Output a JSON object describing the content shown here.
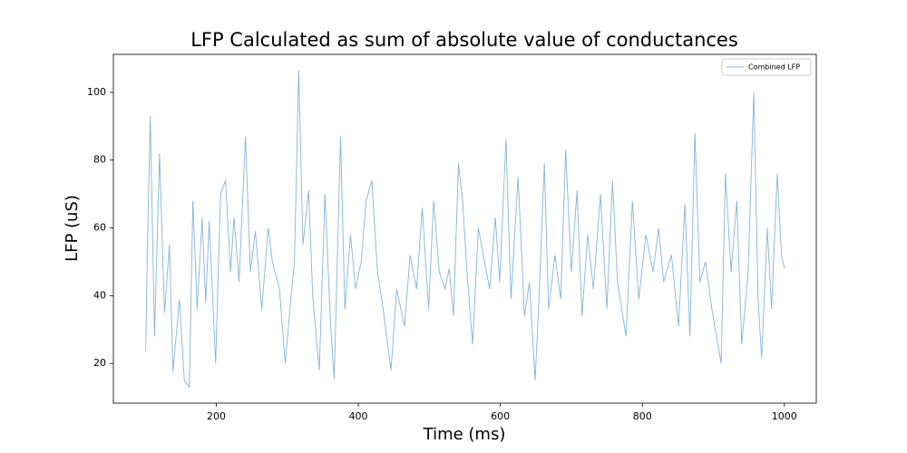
{
  "chart_data": {
    "type": "line",
    "title": "LFP Calculated as sum of absolute value of conductances",
    "xlabel": "Time (ms)",
    "ylabel": "LFP (uS)",
    "x": [
      100.5,
      103,
      107,
      113,
      120,
      127,
      134,
      139,
      148,
      155,
      162,
      167,
      173,
      180,
      185,
      190,
      199,
      206,
      213,
      220,
      225,
      232,
      241,
      248,
      255,
      264,
      273,
      279,
      289,
      297,
      305,
      310,
      316,
      322,
      330,
      336,
      345,
      353,
      361,
      366,
      375,
      381,
      389,
      396,
      404,
      411,
      419,
      427,
      435,
      446,
      454,
      465,
      473,
      482,
      490,
      499,
      506,
      514,
      522,
      528,
      534,
      541,
      547,
      553,
      561,
      569,
      576,
      585,
      593,
      599,
      608,
      615,
      625,
      634,
      641,
      649,
      655,
      662,
      668,
      677,
      685,
      692,
      700,
      708,
      715,
      723,
      731,
      741,
      750,
      758,
      765,
      777,
      786,
      795,
      805,
      815,
      823,
      830,
      841,
      851,
      860,
      867,
      874,
      881,
      889,
      898,
      911,
      917,
      925,
      933,
      940,
      949,
      957,
      963,
      968,
      976,
      982,
      990,
      996,
      1000
    ],
    "series": [
      {
        "name": "Combined LFP",
        "color": "#1f77b4",
        "values": [
          23.5,
          55,
          93,
          28,
          82,
          35,
          55,
          17.6,
          39,
          15,
          13,
          68,
          36,
          63,
          38,
          62,
          20,
          70,
          74,
          47,
          63,
          44,
          87,
          47,
          59,
          36,
          60,
          50,
          42,
          20,
          39,
          50,
          106.5,
          55,
          71,
          39,
          18,
          70,
          31,
          15.5,
          87,
          36,
          58,
          42,
          50,
          68,
          74,
          47,
          36,
          18,
          42,
          31,
          52,
          42,
          66,
          36,
          68,
          47,
          42,
          48,
          34,
          79,
          68,
          47,
          25.6,
          60,
          52,
          42,
          63,
          44,
          86,
          39,
          75,
          34,
          44,
          15,
          42,
          79,
          36,
          52,
          39,
          83,
          47,
          71,
          34,
          58,
          42,
          70,
          36,
          74,
          44,
          28,
          68,
          39,
          58,
          47,
          60,
          44,
          52,
          31,
          67,
          28,
          88,
          44,
          50,
          36,
          20,
          76,
          47,
          68,
          25.6,
          47,
          100,
          39,
          21.6,
          60,
          36,
          76,
          52,
          48
        ]
      }
    ],
    "xlim": [
      55,
      1045
    ],
    "ylim": [
      8.3,
      111.2
    ],
    "xticks": [
      200,
      400,
      600,
      800,
      1000
    ],
    "yticks": [
      20,
      40,
      60,
      80,
      100
    ],
    "legend": "upper right"
  }
}
